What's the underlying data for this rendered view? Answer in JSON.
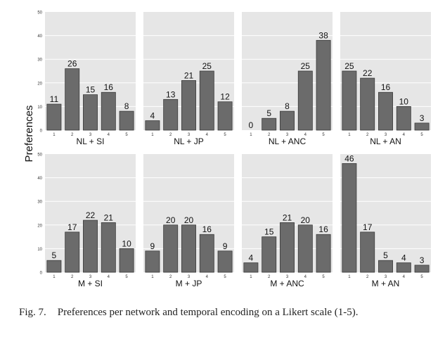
{
  "figure": {
    "ylabel": "Preferences",
    "caption_label": "Fig. 7.",
    "caption_text": "Preferences per network and temporal encoding on a Likert scale (1-5).",
    "colors": {
      "panel_bg": "#e6e6e6",
      "grid": "#ffffff",
      "bar": "#6b6b6b",
      "bar_edge": "#3a3a3a"
    }
  },
  "chart_data": [
    {
      "type": "bar",
      "title": "NL + SI",
      "categories": [
        "1",
        "2",
        "3",
        "4",
        "5"
      ],
      "values": [
        11,
        26,
        15,
        16,
        8
      ],
      "ylim": [
        0,
        50
      ],
      "yticks": [
        0,
        10,
        20,
        30,
        40,
        50
      ],
      "grid": true
    },
    {
      "type": "bar",
      "title": "NL + JP",
      "categories": [
        "1",
        "2",
        "3",
        "4",
        "5"
      ],
      "values": [
        4,
        13,
        21,
        25,
        12
      ],
      "ylim": [
        0,
        50
      ],
      "yticks": [
        0,
        10,
        20,
        30,
        40,
        50
      ],
      "grid": true
    },
    {
      "type": "bar",
      "title": "NL + ANC",
      "categories": [
        "1",
        "2",
        "3",
        "4",
        "5"
      ],
      "values": [
        0,
        5,
        8,
        25,
        38
      ],
      "ylim": [
        0,
        50
      ],
      "yticks": [
        0,
        10,
        20,
        30,
        40,
        50
      ],
      "grid": true
    },
    {
      "type": "bar",
      "title": "NL + AN",
      "categories": [
        "1",
        "2",
        "3",
        "4",
        "5"
      ],
      "values": [
        25,
        22,
        16,
        10,
        3
      ],
      "ylim": [
        0,
        50
      ],
      "yticks": [
        0,
        10,
        20,
        30,
        40,
        50
      ],
      "grid": true
    },
    {
      "type": "bar",
      "title": "M + SI",
      "categories": [
        "1",
        "2",
        "3",
        "4",
        "5"
      ],
      "values": [
        5,
        17,
        22,
        21,
        10
      ],
      "ylim": [
        0,
        50
      ],
      "yticks": [
        0,
        10,
        20,
        30,
        40,
        50
      ],
      "grid": true
    },
    {
      "type": "bar",
      "title": "M + JP",
      "categories": [
        "1",
        "2",
        "3",
        "4",
        "5"
      ],
      "values": [
        9,
        20,
        20,
        16,
        9
      ],
      "ylim": [
        0,
        50
      ],
      "yticks": [
        0,
        10,
        20,
        30,
        40,
        50
      ],
      "grid": true
    },
    {
      "type": "bar",
      "title": "M + ANC",
      "categories": [
        "1",
        "2",
        "3",
        "4",
        "5"
      ],
      "values": [
        4,
        15,
        21,
        20,
        16
      ],
      "ylim": [
        0,
        50
      ],
      "yticks": [
        0,
        10,
        20,
        30,
        40,
        50
      ],
      "grid": true
    },
    {
      "type": "bar",
      "title": "M + AN",
      "categories": [
        "1",
        "2",
        "3",
        "4",
        "5"
      ],
      "values": [
        46,
        17,
        5,
        4,
        3
      ],
      "ylim": [
        0,
        50
      ],
      "yticks": [
        0,
        10,
        20,
        30,
        40,
        50
      ],
      "grid": true
    }
  ]
}
